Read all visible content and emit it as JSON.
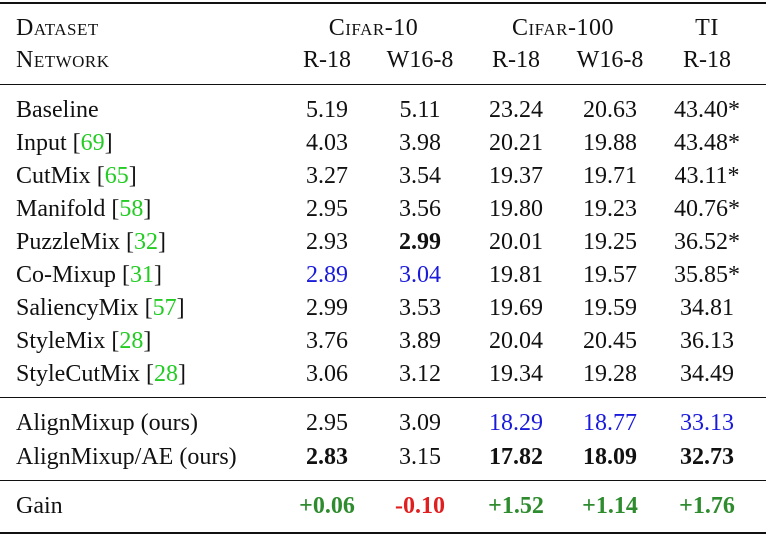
{
  "table": {
    "header": {
      "dataset_label": "Dataset",
      "network_label": "Network",
      "groups": [
        {
          "name": "Cifar-10",
          "networks": [
            "R-18",
            "W16-8"
          ]
        },
        {
          "name": "Cifar-100",
          "networks": [
            "R-18",
            "W16-8"
          ]
        },
        {
          "name": "TI",
          "networks": [
            "R-18"
          ]
        }
      ]
    },
    "body": [
      {
        "method": "Baseline",
        "cells": [
          "5.19",
          "5.11",
          "23.24",
          "20.63",
          "43.40*"
        ]
      },
      {
        "method": "Input",
        "ref": "[69]",
        "cells": [
          "4.03",
          "3.98",
          "20.21",
          "19.88",
          "43.48*"
        ]
      },
      {
        "method": "CutMix",
        "ref": "[65]",
        "cells": [
          "3.27",
          "3.54",
          "19.37",
          "19.71",
          "43.11*"
        ]
      },
      {
        "method": "Manifold",
        "ref": "[58]",
        "cells": [
          "2.95",
          "3.56",
          "19.80",
          "19.23",
          "40.76*"
        ]
      },
      {
        "method": "PuzzleMix",
        "ref": "[32]",
        "cells": [
          "2.93",
          {
            "text": "2.99",
            "bold": true
          },
          "20.01",
          "19.25",
          "36.52*"
        ]
      },
      {
        "method": "Co-Mixup",
        "ref": "[31]",
        "cells": [
          {
            "text": "2.89",
            "color": "#1a1adb"
          },
          {
            "text": "3.04",
            "color": "#1a1adb"
          },
          "19.81",
          "19.57",
          "35.85*"
        ]
      },
      {
        "method": "SaliencyMix",
        "ref": "[57]",
        "cells": [
          "2.99",
          "3.53",
          "19.69",
          "19.59",
          "34.81"
        ]
      },
      {
        "method": "StyleMix",
        "ref": "[28]",
        "cells": [
          "3.76",
          "3.89",
          "20.04",
          "20.45",
          "36.13"
        ]
      },
      {
        "method": "StyleCutMix",
        "ref": "[28]",
        "cells": [
          "3.06",
          "3.12",
          "19.34",
          "19.28",
          "34.49"
        ]
      }
    ],
    "ours": [
      {
        "method": "AlignMixup (ours)",
        "cells": [
          "2.95",
          "3.09",
          {
            "text": "18.29",
            "color": "#1a1adb"
          },
          {
            "text": "18.77",
            "color": "#1a1adb"
          },
          {
            "text": "33.13",
            "color": "#1a1adb"
          }
        ]
      },
      {
        "method": "AlignMixup/AE (ours)",
        "cells": [
          {
            "text": "2.83",
            "bold": true
          },
          "3.15",
          {
            "text": "17.82",
            "bold": true
          },
          {
            "text": "18.09",
            "bold": true
          },
          {
            "text": "32.73",
            "bold": true
          }
        ]
      }
    ],
    "gain": {
      "method": "Gain",
      "cells": [
        {
          "text": "+0.06",
          "bold": true,
          "color": "#2e8b2e"
        },
        {
          "text": "-0.10",
          "bold": true,
          "color": "#e02020"
        },
        {
          "text": "+1.52",
          "bold": true,
          "color": "#2e8b2e"
        },
        {
          "text": "+1.14",
          "bold": true,
          "color": "#2e8b2e"
        },
        {
          "text": "+1.76",
          "bold": true,
          "color": "#2e8b2e"
        }
      ]
    },
    "ref_color": "#22cc22"
  }
}
